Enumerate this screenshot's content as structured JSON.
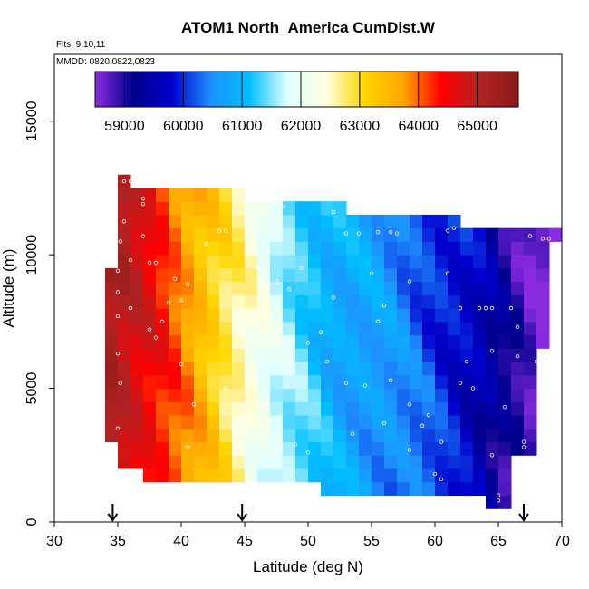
{
  "chart_data": {
    "type": "heatmap",
    "title": "ATOM1 North_America CumDist.W",
    "flights_label": "Flts: 9,10,11",
    "dates_label": "MMDD: 0820,0822,0823",
    "xlabel": "Latitude (deg N)",
    "ylabel": "Altitude (m)",
    "xlim": [
      30,
      70
    ],
    "ylim": [
      0,
      17500
    ],
    "xticks": [
      30,
      35,
      40,
      45,
      50,
      55,
      60,
      65,
      70
    ],
    "yticks": [
      0,
      5000,
      10000,
      15000
    ],
    "colorbar": {
      "range": [
        58500,
        65700
      ],
      "ticks": [
        59000,
        60000,
        61000,
        62000,
        63000,
        64000,
        65000
      ],
      "colors": [
        "#8a2be2",
        "#00008b",
        "#0000cd",
        "#1e90ff",
        "#00bfff",
        "#e0ffff",
        "#ffffe0",
        "#ffd700",
        "#ffa500",
        "#ff0000",
        "#b22222",
        "#8b1a1a"
      ]
    },
    "field": {
      "lat_bin_deg": 1,
      "alt_bin_m": 500,
      "value_model": "value decreases roughly linearly with latitude from ~65300 at 35N to ~58600 at 69N",
      "value_at_lat": [
        [
          34.5,
          65300
        ],
        [
          36.5,
          64800
        ],
        [
          40,
          63900
        ],
        [
          44,
          62800
        ],
        [
          48,
          61600
        ],
        [
          52,
          60900
        ],
        [
          56,
          60600
        ],
        [
          60,
          60100
        ],
        [
          63,
          59700
        ],
        [
          66,
          59000
        ],
        [
          68,
          58600
        ]
      ],
      "columns": [
        {
          "lat": 34,
          "alt_min": 3000,
          "alt_max": 9500
        },
        {
          "lat": 35,
          "alt_min": 2000,
          "alt_max": 13000
        },
        {
          "lat": 36,
          "alt_min": 2000,
          "alt_max": 12500
        },
        {
          "lat": 37,
          "alt_min": 1500,
          "alt_max": 12500
        },
        {
          "lat": 38,
          "alt_min": 1500,
          "alt_max": 12500
        },
        {
          "lat": 39,
          "alt_min": 1500,
          "alt_max": 12500
        },
        {
          "lat": 40,
          "alt_min": 1500,
          "alt_max": 12500
        },
        {
          "lat": 41,
          "alt_min": 1500,
          "alt_max": 12500
        },
        {
          "lat": 42,
          "alt_min": 1500,
          "alt_max": 12500
        },
        {
          "lat": 43,
          "alt_min": 1500,
          "alt_max": 12500
        },
        {
          "lat": 44,
          "alt_min": 1500,
          "alt_max": 12500
        },
        {
          "lat": 45,
          "alt_min": 1500,
          "alt_max": 12000
        },
        {
          "lat": 46,
          "alt_min": 1500,
          "alt_max": 12000
        },
        {
          "lat": 47,
          "alt_min": 1500,
          "alt_max": 12000
        },
        {
          "lat": 48,
          "alt_min": 1500,
          "alt_max": 12000
        },
        {
          "lat": 49,
          "alt_min": 1500,
          "alt_max": 12000
        },
        {
          "lat": 50,
          "alt_min": 1500,
          "alt_max": 12000
        },
        {
          "lat": 51,
          "alt_min": 1000,
          "alt_max": 12000
        },
        {
          "lat": 52,
          "alt_min": 1000,
          "alt_max": 12000
        },
        {
          "lat": 53,
          "alt_min": 1000,
          "alt_max": 11500
        },
        {
          "lat": 54,
          "alt_min": 1000,
          "alt_max": 11500
        },
        {
          "lat": 55,
          "alt_min": 1000,
          "alt_max": 11500
        },
        {
          "lat": 56,
          "alt_min": 1000,
          "alt_max": 11500
        },
        {
          "lat": 57,
          "alt_min": 1000,
          "alt_max": 11500
        },
        {
          "lat": 58,
          "alt_min": 1000,
          "alt_max": 11500
        },
        {
          "lat": 59,
          "alt_min": 1000,
          "alt_max": 11500
        },
        {
          "lat": 60,
          "alt_min": 1000,
          "alt_max": 11500
        },
        {
          "lat": 61,
          "alt_min": 1000,
          "alt_max": 11500
        },
        {
          "lat": 62,
          "alt_min": 1000,
          "alt_max": 11000
        },
        {
          "lat": 63,
          "alt_min": 1000,
          "alt_max": 11000
        },
        {
          "lat": 64,
          "alt_min": 500,
          "alt_max": 11000
        },
        {
          "lat": 65,
          "alt_min": 500,
          "alt_max": 11000
        },
        {
          "lat": 66,
          "alt_min": 2500,
          "alt_max": 11000
        },
        {
          "lat": 67,
          "alt_min": 2500,
          "alt_max": 11000
        },
        {
          "lat": 68,
          "alt_min": 6500,
          "alt_max": 11000
        },
        {
          "lat": 69,
          "alt_min": 10500,
          "alt_max": 11000
        }
      ]
    },
    "samples": [
      [
        35.5,
        12750
      ],
      [
        36.0,
        12750
      ],
      [
        36.5,
        12750
      ],
      [
        37.0,
        12100
      ],
      [
        37.0,
        11900
      ],
      [
        35.5,
        11250
      ],
      [
        35.2,
        10500
      ],
      [
        37.0,
        10700
      ],
      [
        36.0,
        9800
      ],
      [
        35.0,
        9400
      ],
      [
        35.0,
        8600
      ],
      [
        35.0,
        7700
      ],
      [
        35.0,
        6300
      ],
      [
        35.2,
        5200
      ],
      [
        35.0,
        3500
      ],
      [
        37.5,
        9700
      ],
      [
        38.0,
        9700
      ],
      [
        39.5,
        9100
      ],
      [
        40.0,
        8300
      ],
      [
        38.5,
        7500
      ],
      [
        38.0,
        6900
      ],
      [
        40.0,
        5900
      ],
      [
        41.0,
        4400
      ],
      [
        40.5,
        2800
      ],
      [
        42.0,
        10400
      ],
      [
        43.0,
        10900
      ],
      [
        43.5,
        10900
      ],
      [
        46.0,
        9500
      ],
      [
        47.0,
        11800
      ],
      [
        48.0,
        11800
      ],
      [
        47.5,
        9000
      ],
      [
        49.5,
        9500
      ],
      [
        50.0,
        6700
      ],
      [
        51.0,
        7100
      ],
      [
        52.0,
        11600
      ],
      [
        53.0,
        10800
      ],
      [
        54.0,
        10800
      ],
      [
        55.5,
        10850
      ],
      [
        56.5,
        10850
      ],
      [
        57.0,
        10800
      ],
      [
        61.0,
        10900
      ],
      [
        61.5,
        11000
      ],
      [
        61.0,
        9300
      ],
      [
        62.0,
        8000
      ],
      [
        63.5,
        8000
      ],
      [
        64.0,
        8000
      ],
      [
        64.5,
        8000
      ],
      [
        66.0,
        8000
      ],
      [
        66.5,
        7300
      ],
      [
        64.5,
        6400
      ],
      [
        66.5,
        6200
      ],
      [
        68.0,
        6000
      ],
      [
        67.0,
        3000
      ],
      [
        67.0,
        2800
      ],
      [
        64.5,
        2500
      ],
      [
        65.0,
        1000
      ],
      [
        65.0,
        800
      ],
      [
        60.0,
        1800
      ],
      [
        60.5,
        1600
      ],
      [
        58.0,
        2700
      ],
      [
        59.0,
        3600
      ],
      [
        58.0,
        4400
      ],
      [
        53.0,
        5200
      ],
      [
        54.5,
        5100
      ],
      [
        56.5,
        5300
      ],
      [
        59.5,
        4000
      ],
      [
        56.0,
        3700
      ],
      [
        53.5,
        3300
      ],
      [
        51.5,
        6000
      ],
      [
        56.0,
        8100
      ],
      [
        58.0,
        9000
      ],
      [
        55.0,
        9300
      ],
      [
        55.5,
        7500
      ],
      [
        52.0,
        8400
      ],
      [
        48.5,
        8700
      ],
      [
        45.5,
        7900
      ],
      [
        46.0,
        5600
      ],
      [
        46.5,
        4400
      ],
      [
        43.5,
        5000
      ],
      [
        44.5,
        3400
      ],
      [
        49.0,
        2900
      ],
      [
        50.0,
        2600
      ],
      [
        60.5,
        3000
      ],
      [
        62.5,
        6000
      ],
      [
        62.0,
        5200
      ],
      [
        63.0,
        5000
      ],
      [
        65.5,
        4300
      ],
      [
        68.5,
        10600
      ],
      [
        69.0,
        10600
      ],
      [
        67.5,
        10700
      ],
      [
        36.0,
        8000
      ],
      [
        39.0,
        8200
      ],
      [
        40.5,
        8900
      ],
      [
        37.5,
        7200
      ]
    ],
    "flight_markers_lat": [
      34.6,
      44.8,
      67.0
    ]
  }
}
